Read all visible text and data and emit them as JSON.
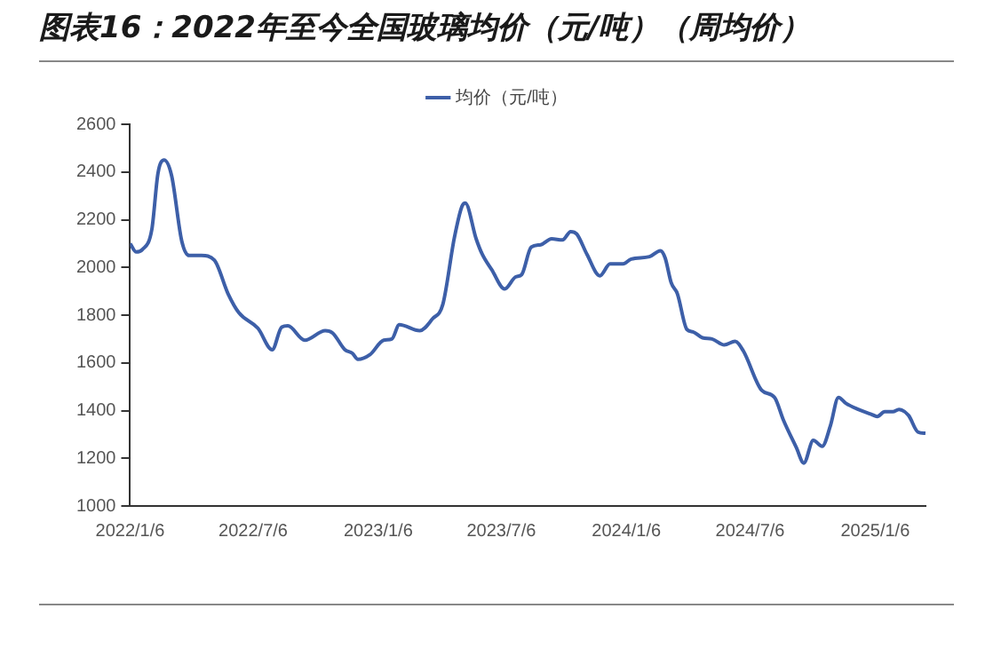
{
  "chart_data": {
    "type": "line",
    "title": "图表16：2022年至今全国玻璃均价（元/吨）（周均价）",
    "x": [
      "2022-01-06",
      "2022-01-15",
      "2022-01-24",
      "2022-02-07",
      "2022-02-16",
      "2022-02-25",
      "2022-03-08",
      "2022-03-23",
      "2022-04-03",
      "2022-04-21",
      "2022-05-10",
      "2022-05-30",
      "2022-06-15",
      "2022-07-13",
      "2022-08-03",
      "2022-08-17",
      "2022-08-26",
      "2022-09-20",
      "2022-10-20",
      "2022-10-31",
      "2022-11-18",
      "2022-11-29",
      "2022-12-07",
      "2022-12-25",
      "2023-01-14",
      "2023-01-26",
      "2023-02-06",
      "2023-03-08",
      "2023-03-27",
      "2023-04-11",
      "2023-04-28",
      "2023-05-09",
      "2023-05-14",
      "2023-05-30",
      "2023-06-08",
      "2023-06-22",
      "2023-07-11",
      "2023-07-27",
      "2023-08-05",
      "2023-08-19",
      "2023-09-02",
      "2023-09-18",
      "2023-10-04",
      "2023-10-16",
      "2023-10-25",
      "2023-11-09",
      "2023-11-28",
      "2023-12-13",
      "2024-01-01",
      "2024-01-13",
      "2024-02-09",
      "2024-02-25",
      "2024-03-03",
      "2024-03-12",
      "2024-03-21",
      "2024-04-04",
      "2024-04-13",
      "2024-04-27",
      "2024-05-11",
      "2024-05-29",
      "2024-06-14",
      "2024-06-26",
      "2024-07-23",
      "2024-08-11",
      "2024-08-24",
      "2024-09-12",
      "2024-09-23",
      "2024-10-07",
      "2024-10-20",
      "2024-11-01",
      "2024-11-13",
      "2024-11-24",
      "2024-12-12",
      "2024-12-31",
      "2025-01-09",
      "2025-01-20",
      "2025-02-01",
      "2025-02-10",
      "2025-02-24",
      "2025-03-10",
      "2025-03-21"
    ],
    "series": [
      {
        "name": "均价（元/吨）",
        "color": "#3d5fa8",
        "values": [
          2100,
          2065,
          2075,
          2160,
          2395,
          2450,
          2385,
          2110,
          2050,
          2050,
          2030,
          1890,
          1810,
          1745,
          1655,
          1750,
          1755,
          1695,
          1735,
          1725,
          1655,
          1640,
          1615,
          1635,
          1695,
          1700,
          1760,
          1735,
          1785,
          1845,
          2125,
          2255,
          2270,
          2120,
          2055,
          1990,
          1910,
          1960,
          1970,
          2085,
          2095,
          2120,
          2115,
          2150,
          2140,
          2055,
          1965,
          2015,
          2015,
          2035,
          2045,
          2070,
          2040,
          1935,
          1890,
          1740,
          1730,
          1705,
          1700,
          1675,
          1690,
          1650,
          1485,
          1455,
          1360,
          1245,
          1180,
          1275,
          1250,
          1335,
          1455,
          1430,
          1405,
          1385,
          1375,
          1395,
          1395,
          1405,
          1380,
          1310,
          1305
        ]
      }
    ],
    "xlim": [
      "2022-01-06",
      "2025-03-21"
    ],
    "xticks": [
      {
        "value": "2022-01-06",
        "label": "2022/1/6"
      },
      {
        "value": "2022-07-06",
        "label": "2022/7/6"
      },
      {
        "value": "2023-01-06",
        "label": "2023/1/6"
      },
      {
        "value": "2023-07-06",
        "label": "2023/7/6"
      },
      {
        "value": "2024-01-06",
        "label": "2024/1/6"
      },
      {
        "value": "2024-07-06",
        "label": "2024/7/6"
      },
      {
        "value": "2025-01-06",
        "label": "2025/1/6"
      }
    ],
    "ylim": [
      1000,
      2600
    ],
    "yticks": [
      1000,
      1200,
      1400,
      1600,
      1800,
      2000,
      2200,
      2400,
      2600
    ],
    "legend": "top",
    "marker": "none"
  }
}
